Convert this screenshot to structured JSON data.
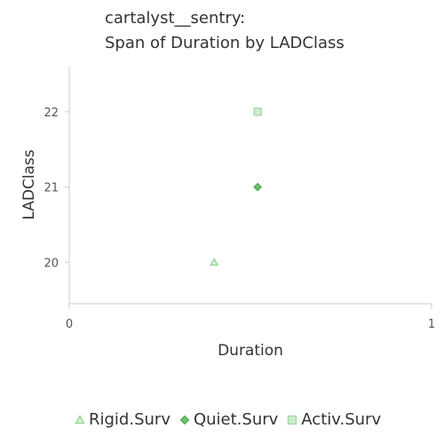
{
  "title_line1": "cartalyst__sentry:",
  "title_line2": "Span of Duration by LADClass",
  "chart_data": {
    "type": "scatter",
    "title": "cartalyst__sentry: Span of Duration by LADClass",
    "xlabel": "Duration",
    "ylabel": "LADClass",
    "xlim": [
      0,
      1
    ],
    "ylim": [
      19.45,
      22.6
    ],
    "xticks": [
      "0",
      "1"
    ],
    "yticks": [
      "20",
      "21",
      "22"
    ],
    "grid": false,
    "legend_position": "bottom",
    "series": [
      {
        "name": "Rigid.Surv",
        "marker": "triangle",
        "color": "#8fd68f",
        "points": [
          {
            "x": 0.4,
            "y": 20
          }
        ]
      },
      {
        "name": "Quiet.Surv",
        "marker": "diamond",
        "color": "#4caf50",
        "points": [
          {
            "x": 0.52,
            "y": 21
          }
        ]
      },
      {
        "name": "Activ.Surv",
        "marker": "square",
        "color": "#9fd99f",
        "points": [
          {
            "x": 0.52,
            "y": 22
          }
        ]
      }
    ]
  }
}
